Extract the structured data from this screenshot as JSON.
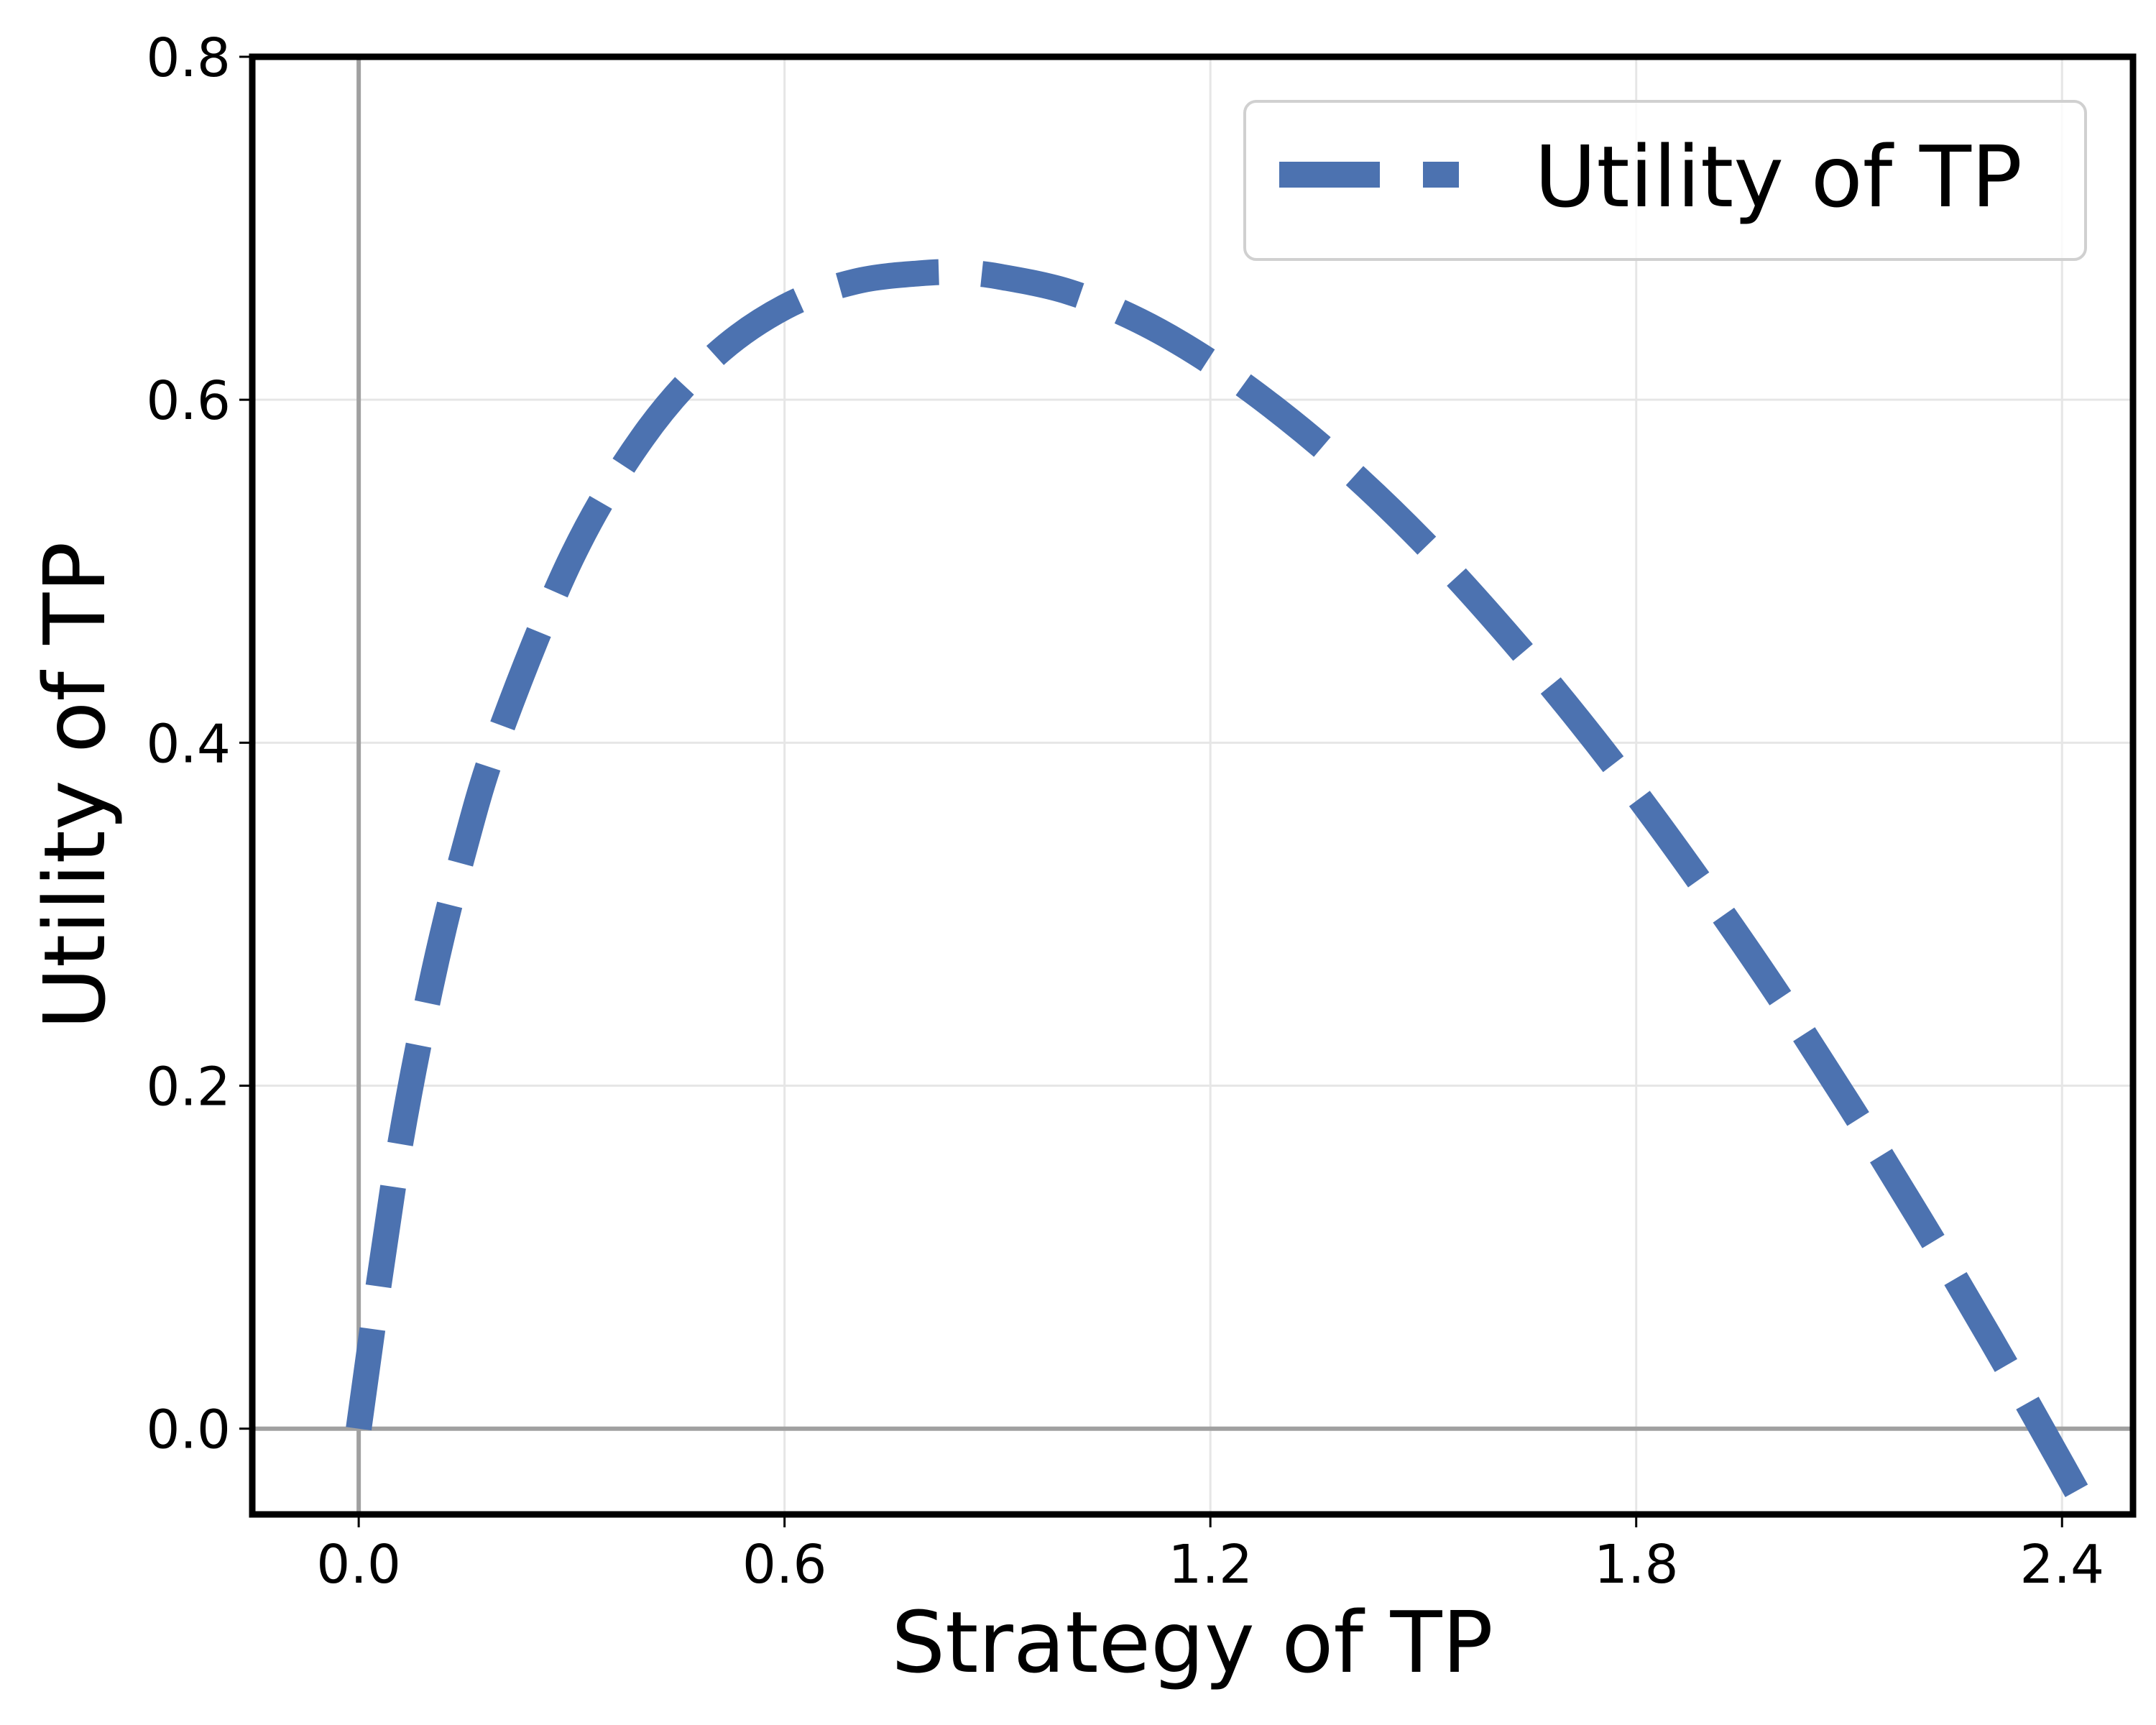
{
  "chart_data": {
    "type": "line",
    "title": "",
    "xlabel": "Strategy of TP",
    "ylabel": "Utility of TP",
    "xlim": [
      -0.15,
      2.5
    ],
    "ylim": [
      -0.05,
      0.8
    ],
    "xticks": [
      "0.0",
      "0.6",
      "1.2",
      "1.8",
      "2.4"
    ],
    "xtick_values": [
      0.0,
      0.6,
      1.2,
      1.8,
      2.4
    ],
    "yticks": [
      "0.0",
      "0.2",
      "0.4",
      "0.6",
      "0.8"
    ],
    "ytick_values": [
      0.0,
      0.2,
      0.4,
      0.6,
      0.8
    ],
    "grid": true,
    "reference_lines": {
      "x": 0.0,
      "y": 0.0
    },
    "legend_position": "top-right",
    "series": [
      {
        "name": "Utility of TP",
        "color": "#4c72b0",
        "line_style": "dashed",
        "x": [
          0.0,
          0.05,
          0.1,
          0.15,
          0.2,
          0.3,
          0.4,
          0.5,
          0.6,
          0.7,
          0.8,
          0.85,
          0.9,
          1.0,
          1.1,
          1.2,
          1.3,
          1.4,
          1.5,
          1.6,
          1.7,
          1.8,
          1.9,
          2.0,
          2.1,
          2.2,
          2.3,
          2.4,
          2.5
        ],
        "y": [
          0.0,
          0.145,
          0.255,
          0.34,
          0.407,
          0.508,
          0.578,
          0.625,
          0.654,
          0.669,
          0.674,
          0.674,
          0.672,
          0.663,
          0.646,
          0.622,
          0.592,
          0.557,
          0.517,
          0.472,
          0.423,
          0.37,
          0.313,
          0.253,
          0.189,
          0.122,
          0.052,
          -0.021,
          -0.096
        ]
      }
    ]
  }
}
